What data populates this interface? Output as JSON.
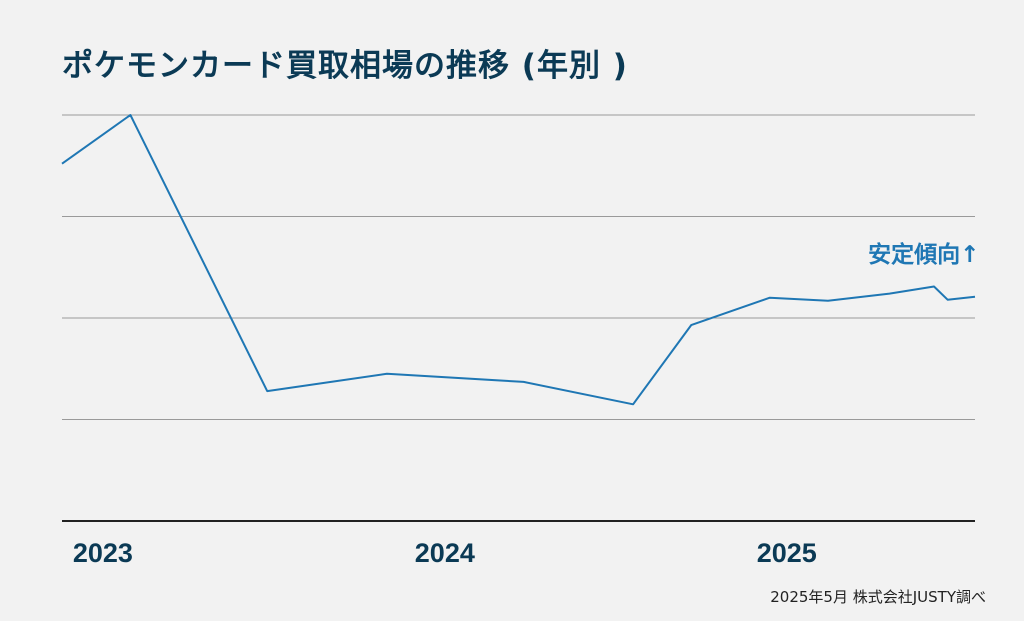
{
  "title": "ポケモンカード買取相場の推移 (年別 )",
  "source": "2025年5月 株式会社JUSTY調べ",
  "colors": {
    "line": "#1f77b4",
    "text": "#0b3a55",
    "grid": "#9a9a9a",
    "axis": "#222222",
    "background": "#f2f2f2"
  },
  "chart_data": {
    "type": "line",
    "title": "ポケモンカード買取相場の推移 (年別 )",
    "x_tick_labels": [
      "2023",
      "2024",
      "2025"
    ],
    "x_ticks": [
      2023.0,
      2024.0,
      2025.0
    ],
    "xlim": [
      2022.98,
      2025.65
    ],
    "ylim": [
      0,
      4
    ],
    "y_tick_labels": [],
    "grid": true,
    "series": [
      {
        "values": [
          {
            "x": 2022.98,
            "y": 3.52
          },
          {
            "x": 2023.18,
            "y": 4.0
          },
          {
            "x": 2023.58,
            "y": 1.28
          },
          {
            "x": 2023.93,
            "y": 1.45
          },
          {
            "x": 2024.33,
            "y": 1.37
          },
          {
            "x": 2024.65,
            "y": 1.15
          },
          {
            "x": 2024.82,
            "y": 1.93
          },
          {
            "x": 2025.05,
            "y": 2.2
          },
          {
            "x": 2025.22,
            "y": 2.17
          },
          {
            "x": 2025.4,
            "y": 2.24
          },
          {
            "x": 2025.53,
            "y": 2.31
          },
          {
            "x": 2025.57,
            "y": 2.18
          },
          {
            "x": 2025.65,
            "y": 2.21
          }
        ]
      }
    ],
    "annotations": [
      {
        "text": "安定傾向↑",
        "x": 2025.5,
        "y": 2.55
      }
    ]
  }
}
